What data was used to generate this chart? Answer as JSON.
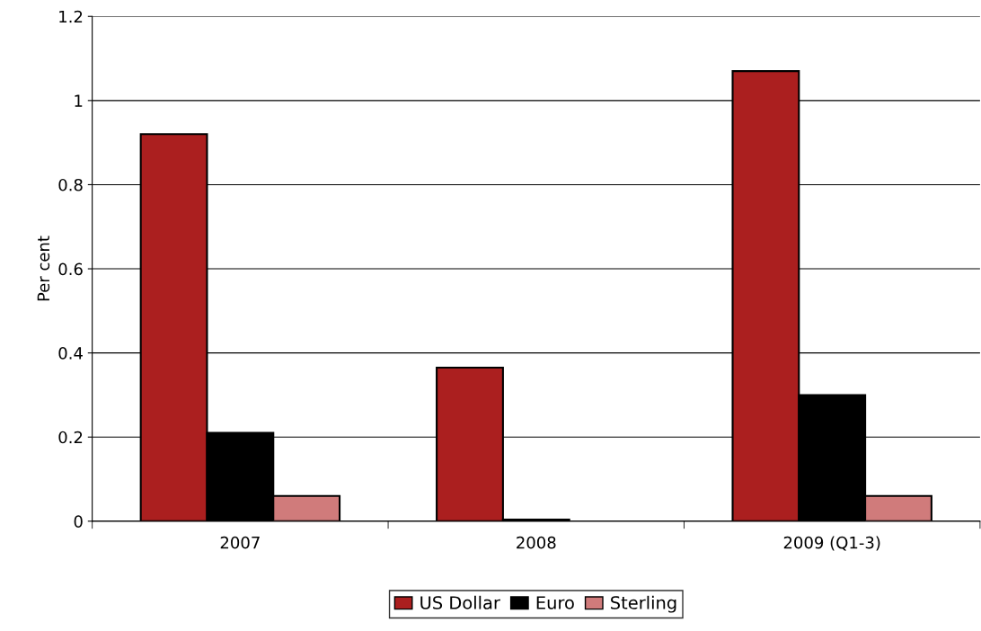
{
  "chart_data": {
    "type": "bar",
    "ylabel": "Per cent",
    "categories": [
      "2007",
      "2008",
      "2009 (Q1-3)"
    ],
    "series": [
      {
        "name": "US Dollar",
        "color": "#ab1f1f",
        "values": [
          0.92,
          0.365,
          1.07
        ]
      },
      {
        "name": "Euro",
        "color": "#000000",
        "values": [
          0.21,
          0.004,
          0.3
        ]
      },
      {
        "name": "Sterling",
        "color": "#d07b7b",
        "values": [
          0.06,
          null,
          0.06
        ]
      }
    ],
    "ylim": [
      0,
      1.2
    ],
    "yticks": [
      0,
      0.2,
      0.4,
      0.6,
      0.8,
      1,
      1.2
    ],
    "grid": "y",
    "legend": "bottom"
  }
}
